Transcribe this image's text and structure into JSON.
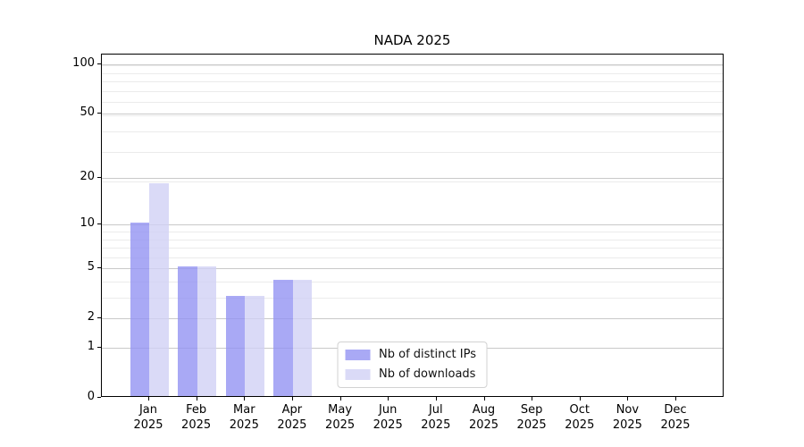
{
  "chart_data": {
    "type": "bar",
    "title": "NADA 2025",
    "x": [
      {
        "month": "Jan",
        "year": "2025"
      },
      {
        "month": "Feb",
        "year": "2025"
      },
      {
        "month": "Mar",
        "year": "2025"
      },
      {
        "month": "Apr",
        "year": "2025"
      },
      {
        "month": "May",
        "year": "2025"
      },
      {
        "month": "Jun",
        "year": "2025"
      },
      {
        "month": "Jul",
        "year": "2025"
      },
      {
        "month": "Aug",
        "year": "2025"
      },
      {
        "month": "Sep",
        "year": "2025"
      },
      {
        "month": "Oct",
        "year": "2025"
      },
      {
        "month": "Nov",
        "year": "2025"
      },
      {
        "month": "Dec",
        "year": "2025"
      }
    ],
    "series": [
      {
        "name": "Nb of distinct IPs",
        "color": "#9393f2cc",
        "values": [
          10,
          5,
          3,
          4,
          0,
          0,
          0,
          0,
          0,
          0,
          0,
          0
        ]
      },
      {
        "name": "Nb of downloads",
        "color": "#d1d1f5cc",
        "values": [
          18,
          5,
          3,
          4,
          0,
          0,
          0,
          0,
          0,
          0,
          0,
          0
        ]
      }
    ],
    "y_axis": {
      "scale": "log(1+y)",
      "ticks": [
        0,
        1,
        2,
        5,
        10,
        20,
        50,
        100
      ],
      "top_value": 115
    },
    "grid": {
      "major_color": "#c9c9c9",
      "minor_color": "#ebebeb",
      "minor_levels_1plusy": [
        4,
        5,
        7,
        8,
        9,
        10,
        20,
        30,
        40,
        50,
        60,
        70,
        80,
        90,
        100
      ]
    },
    "legend": {
      "position": "lower center"
    }
  }
}
